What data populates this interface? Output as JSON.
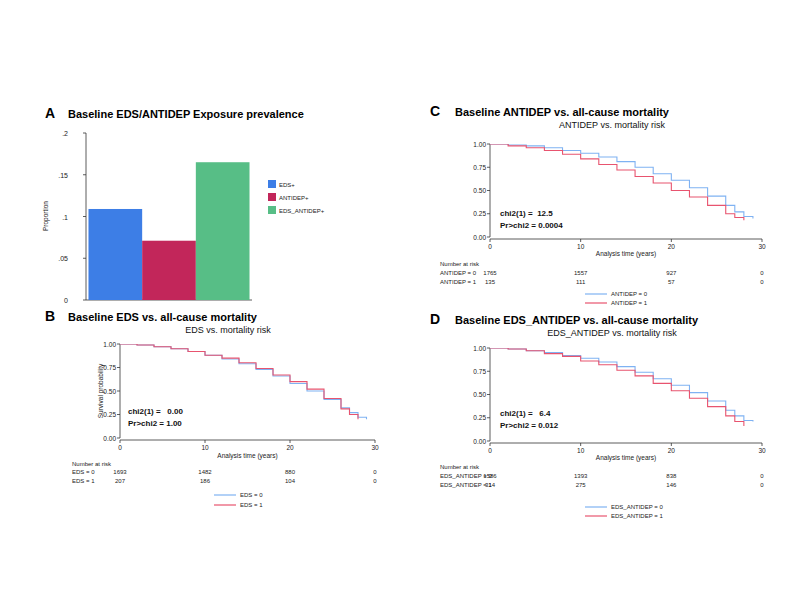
{
  "chart_data": [
    {
      "panel": "A",
      "type": "bar",
      "title": "Baseline EDS/ANTIDEP Exposure prevalence",
      "y_label": "Proportion",
      "categories": [
        null
      ],
      "series": [
        {
          "name": "EDS+",
          "color": "#3d7ee6",
          "values": [
            0.109
          ]
        },
        {
          "name": "ANTIDEP+",
          "color": "#c2265a",
          "values": [
            0.071
          ]
        },
        {
          "name": "EDS_ANTIDEP+",
          "color": "#57be86",
          "values": [
            0.165
          ]
        }
      ],
      "ylim": [
        0,
        0.2
      ],
      "yticks": [
        0,
        {
          "value": 0.05,
          "label": ".05"
        },
        {
          "value": 0.1,
          "label": ".1"
        },
        {
          "value": 0.15,
          "label": ".15"
        },
        {
          "value": 0.2,
          "label": ".2"
        }
      ],
      "grid": false,
      "legend": "right"
    },
    {
      "panel": "B",
      "type": "line",
      "title": "Baseline EDS vs. all-cause mortality",
      "subtitle": "EDS vs. mortality risk",
      "x_label": "Analysis time (years)",
      "y_label": "Survival probability",
      "xlim": [
        0,
        30
      ],
      "xticks": [
        0,
        10,
        20,
        30
      ],
      "ylim": [
        0,
        1
      ],
      "yticks": [
        {
          "value": 0,
          "label": "0.00"
        },
        {
          "value": 0.25,
          "label": "0.25"
        },
        {
          "value": 0.5,
          "label": "0.50"
        },
        {
          "value": 0.75,
          "label": "0.75"
        },
        {
          "value": 1,
          "label": "1.00"
        }
      ],
      "annotations": [
        "chi2(1) =   0.00",
        "Pr>chi2 = 1.00"
      ],
      "risk_table_title": "Number at risk",
      "at_risk_x": [
        0,
        10,
        20,
        30
      ],
      "line_style": "step",
      "grid": false,
      "legend": "bottom",
      "series": [
        {
          "name": "EDS = 0",
          "color": "#7fb2f2",
          "x": [
            0,
            2,
            4,
            6,
            8,
            10,
            12,
            14,
            16,
            18,
            20,
            22,
            24,
            26,
            27,
            28,
            29
          ],
          "values": [
            1,
            0.99,
            0.97,
            0.95,
            0.92,
            0.88,
            0.84,
            0.79,
            0.73,
            0.66,
            0.58,
            0.5,
            0.41,
            0.32,
            0.27,
            0.22,
            0.2
          ],
          "at_risk": [
            1693,
            1482,
            880,
            0
          ]
        },
        {
          "name": "EDS = 1",
          "color": "#e8546f",
          "x": [
            0,
            2,
            4,
            6,
            8,
            10,
            12,
            14,
            16,
            18,
            20,
            22,
            24,
            26,
            27,
            28
          ],
          "values": [
            1,
            0.99,
            0.97,
            0.95,
            0.92,
            0.88,
            0.85,
            0.8,
            0.74,
            0.67,
            0.6,
            0.52,
            0.42,
            0.31,
            0.25,
            0.2
          ],
          "at_risk": [
            207,
            186,
            104,
            0
          ]
        }
      ]
    },
    {
      "panel": "C",
      "type": "line",
      "title": "Baseline ANTIDEP vs. all-cause mortality",
      "subtitle": "ANTIDEP vs. mortality risk",
      "x_label": "Analysis time (years)",
      "xlim": [
        0,
        30
      ],
      "xticks": [
        0,
        10,
        20,
        30
      ],
      "ylim": [
        0,
        1
      ],
      "yticks": [
        {
          "value": 0,
          "label": "0.00"
        },
        {
          "value": 0.25,
          "label": "0.25"
        },
        {
          "value": 0.5,
          "label": "0.50"
        },
        {
          "value": 0.75,
          "label": "0.75"
        },
        {
          "value": 1,
          "label": "1.00"
        }
      ],
      "annotations": [
        "chi2(1) =  12.5",
        "Pr>chi2 = 0.0004"
      ],
      "risk_table_title": "Number at risk",
      "at_risk_x": [
        0,
        10,
        20,
        30
      ],
      "line_style": "step",
      "grid": false,
      "legend": "bottom",
      "series": [
        {
          "name": "ANTIDEP = 0",
          "color": "#7fb2f2",
          "x": [
            0,
            2,
            4,
            6,
            8,
            10,
            12,
            14,
            16,
            18,
            20,
            22,
            24,
            26,
            27,
            28,
            29
          ],
          "values": [
            1,
            0.99,
            0.98,
            0.96,
            0.93,
            0.9,
            0.86,
            0.81,
            0.75,
            0.68,
            0.61,
            0.53,
            0.44,
            0.34,
            0.27,
            0.22,
            0.2
          ],
          "at_risk": [
            1765,
            1557,
            927,
            0
          ]
        },
        {
          "name": "ANTIDEP = 1",
          "color": "#e8546f",
          "x": [
            0,
            2,
            4,
            6,
            8,
            10,
            12,
            14,
            16,
            18,
            20,
            22,
            24,
            26,
            27,
            28
          ],
          "values": [
            1,
            0.98,
            0.96,
            0.93,
            0.89,
            0.84,
            0.78,
            0.72,
            0.65,
            0.58,
            0.5,
            0.43,
            0.34,
            0.25,
            0.21,
            0.18
          ],
          "at_risk": [
            135,
            111,
            57,
            0
          ]
        }
      ]
    },
    {
      "panel": "D",
      "type": "line",
      "title": "Baseline EDS_ANTIDEP vs. all-cause mortality",
      "subtitle": "EDS_ANTIDEP vs. mortality risk",
      "x_label": "Analysis time (years)",
      "xlim": [
        0,
        30
      ],
      "xticks": [
        0,
        10,
        20,
        30
      ],
      "ylim": [
        0,
        1
      ],
      "yticks": [
        {
          "value": 0,
          "label": "0.00"
        },
        {
          "value": 0.25,
          "label": "0.25"
        },
        {
          "value": 0.5,
          "label": "0.50"
        },
        {
          "value": 0.75,
          "label": "0.75"
        },
        {
          "value": 1,
          "label": "1.00"
        }
      ],
      "annotations": [
        "chi2(1) =   6.4",
        "Pr>chi2 = 0.012"
      ],
      "risk_table_title": "Number at risk",
      "at_risk_x": [
        0,
        10,
        20,
        30
      ],
      "line_style": "step",
      "grid": false,
      "legend": "bottom",
      "series": [
        {
          "name": "EDS_ANTIDEP = 0",
          "color": "#7fb2f2",
          "x": [
            0,
            2,
            4,
            6,
            8,
            10,
            12,
            14,
            16,
            18,
            20,
            22,
            24,
            26,
            27,
            28,
            29
          ],
          "values": [
            1,
            0.99,
            0.97,
            0.95,
            0.92,
            0.89,
            0.85,
            0.8,
            0.74,
            0.67,
            0.6,
            0.52,
            0.43,
            0.33,
            0.27,
            0.22,
            0.21
          ],
          "at_risk": [
            1586,
            1393,
            838,
            0
          ]
        },
        {
          "name": "EDS_ANTIDEP = 1",
          "color": "#e8546f",
          "x": [
            0,
            2,
            4,
            6,
            8,
            10,
            12,
            14,
            16,
            18,
            20,
            22,
            24,
            26,
            27,
            28
          ],
          "values": [
            1,
            0.99,
            0.97,
            0.94,
            0.91,
            0.86,
            0.82,
            0.76,
            0.7,
            0.62,
            0.54,
            0.46,
            0.37,
            0.27,
            0.21,
            0.16
          ],
          "at_risk": [
            314,
            275,
            146,
            0
          ]
        }
      ]
    }
  ]
}
